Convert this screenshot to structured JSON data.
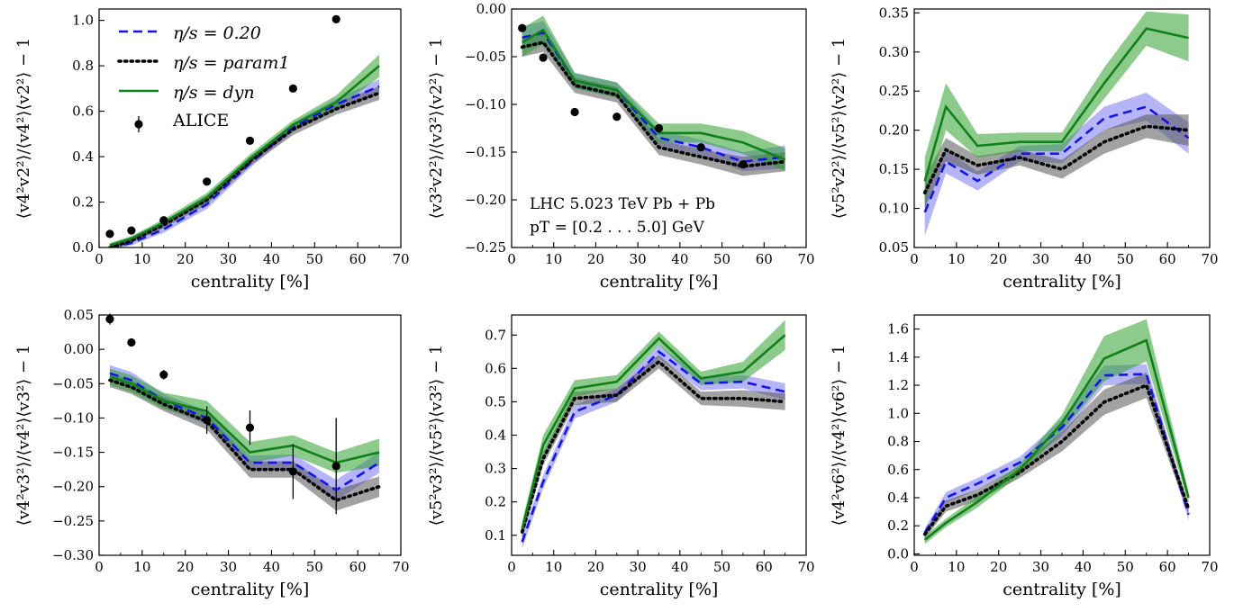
{
  "colors": {
    "blue": "#1414e6",
    "black": "#000000",
    "green": "#12801a",
    "blue_band": "#5a5af0",
    "black_band": "#555555",
    "green_band": "#2ea02e"
  },
  "legend": [
    {
      "label": "η/s = 0.20",
      "series": "blue",
      "style": "dashed"
    },
    {
      "label": "η/s = param1",
      "series": "black",
      "style": "dotted"
    },
    {
      "label": "η/s = dyn",
      "series": "green",
      "style": "solid"
    },
    {
      "label": "ALICE",
      "series": "data",
      "style": "marker"
    }
  ],
  "annotation": {
    "line1": "LHC 5.023 TeV Pb + Pb",
    "line2": "pT = [0.2 . . . 5.0] GeV"
  },
  "chart_data": [
    {
      "type": "line",
      "ylabel": "⟨v4²v2²⟩/⟨v4²⟩⟨v2²⟩ − 1",
      "xlabel": "centrality [%]",
      "xlim": [
        0,
        70
      ],
      "ylim": [
        0,
        1.05
      ],
      "xticks": [
        0,
        10,
        20,
        30,
        40,
        50,
        60,
        70
      ],
      "yticks": [
        0.0,
        0.2,
        0.4,
        0.6,
        0.8,
        1.0
      ],
      "ytick_labels": [
        "0.0",
        "0.2",
        "0.4",
        "0.6",
        "0.8",
        "1.0"
      ],
      "x": [
        2.5,
        7.5,
        15,
        25,
        35,
        45,
        55,
        65
      ],
      "series": [
        {
          "name": "η/s = 0.20",
          "values": [
            0.0,
            0.02,
            0.08,
            0.19,
            0.37,
            0.53,
            0.63,
            0.71
          ],
          "band": [
            0.01,
            0.01,
            0.015,
            0.02,
            0.02,
            0.02,
            0.025,
            0.03
          ]
        },
        {
          "name": "η/s = param1",
          "values": [
            0.0,
            0.03,
            0.1,
            0.21,
            0.38,
            0.52,
            0.61,
            0.68
          ],
          "band": [
            0.01,
            0.01,
            0.015,
            0.02,
            0.02,
            0.025,
            0.025,
            0.03
          ]
        },
        {
          "name": "η/s = dyn",
          "values": [
            0.01,
            0.04,
            0.11,
            0.22,
            0.39,
            0.54,
            0.64,
            0.8
          ],
          "band": [
            0.01,
            0.01,
            0.015,
            0.02,
            0.02,
            0.02,
            0.03,
            0.05
          ]
        }
      ],
      "data_points": {
        "name": "ALICE",
        "x": [
          2.5,
          7.5,
          15,
          25,
          35,
          45,
          55
        ],
        "y": [
          0.06,
          0.075,
          0.12,
          0.29,
          0.47,
          0.7,
          1.005
        ],
        "err": [
          0,
          0,
          0,
          0,
          0,
          0,
          0
        ]
      }
    },
    {
      "type": "line",
      "ylabel": "⟨v3²v2²⟩/⟨v3²⟩⟨v2²⟩ − 1",
      "xlabel": "centrality [%]",
      "xlim": [
        0,
        70
      ],
      "ylim": [
        -0.25,
        0.0
      ],
      "xticks": [
        0,
        10,
        20,
        30,
        40,
        50,
        60,
        70
      ],
      "yticks": [
        -0.25,
        -0.2,
        -0.15,
        -0.1,
        -0.05,
        0.0
      ],
      "ytick_labels": [
        "−0.25",
        "−0.20",
        "−0.15",
        "−0.10",
        "−0.05",
        "0.00"
      ],
      "x": [
        2.5,
        7.5,
        15,
        25,
        35,
        45,
        55,
        65
      ],
      "series": [
        {
          "name": "η/s = 0.20",
          "values": [
            -0.03,
            -0.025,
            -0.075,
            -0.085,
            -0.135,
            -0.145,
            -0.16,
            -0.155
          ],
          "band": [
            0.012,
            0.012,
            0.008,
            0.008,
            0.008,
            0.008,
            0.01,
            0.012
          ]
        },
        {
          "name": "η/s = param1",
          "values": [
            -0.04,
            -0.035,
            -0.08,
            -0.09,
            -0.145,
            -0.155,
            -0.165,
            -0.16
          ],
          "band": [
            0.01,
            0.01,
            0.008,
            0.008,
            0.008,
            0.008,
            0.01,
            0.01
          ]
        },
        {
          "name": "η/s = dyn",
          "values": [
            -0.035,
            -0.022,
            -0.075,
            -0.085,
            -0.13,
            -0.13,
            -0.14,
            -0.158
          ],
          "band": [
            0.015,
            0.015,
            0.008,
            0.008,
            0.01,
            0.01,
            0.012,
            0.012
          ]
        }
      ],
      "data_points": {
        "name": "ALICE",
        "x": [
          2.5,
          7.5,
          15,
          25,
          35,
          45,
          55
        ],
        "y": [
          -0.02,
          -0.051,
          -0.108,
          -0.113,
          -0.125,
          -0.145,
          -0.163
        ],
        "err": [
          0,
          0,
          0,
          0,
          0,
          0,
          0
        ]
      }
    },
    {
      "type": "line",
      "ylabel": "⟨v5²v2²⟩/⟨v5²⟩⟨v2²⟩ − 1",
      "xlabel": "centrality [%]",
      "xlim": [
        0,
        70
      ],
      "ylim": [
        0.05,
        0.355
      ],
      "xticks": [
        0,
        10,
        20,
        30,
        40,
        50,
        60,
        70
      ],
      "yticks": [
        0.05,
        0.1,
        0.15,
        0.2,
        0.25,
        0.3,
        0.35
      ],
      "ytick_labels": [
        "0.05",
        "0.10",
        "0.15",
        "0.20",
        "0.25",
        "0.30",
        "0.35"
      ],
      "x": [
        2.5,
        7.5,
        15,
        25,
        35,
        45,
        55,
        65
      ],
      "series": [
        {
          "name": "η/s = 0.20",
          "values": [
            0.095,
            0.16,
            0.135,
            0.17,
            0.17,
            0.215,
            0.23,
            0.19
          ],
          "band": [
            0.03,
            0.015,
            0.012,
            0.01,
            0.012,
            0.015,
            0.018,
            0.02
          ]
        },
        {
          "name": "η/s = param1",
          "values": [
            0.12,
            0.175,
            0.155,
            0.165,
            0.15,
            0.185,
            0.205,
            0.2
          ],
          "band": [
            0.02,
            0.015,
            0.012,
            0.01,
            0.012,
            0.015,
            0.015,
            0.02
          ]
        },
        {
          "name": "η/s = dyn",
          "values": [
            0.135,
            0.23,
            0.18,
            0.185,
            0.185,
            0.26,
            0.33,
            0.318
          ],
          "band": [
            0.03,
            0.03,
            0.015,
            0.012,
            0.012,
            0.02,
            0.022,
            0.03
          ]
        }
      ]
    },
    {
      "type": "line",
      "ylabel": "⟨v4²v3²⟩/⟨v4²⟩⟨v3²⟩ − 1",
      "xlabel": "centrality [%]",
      "xlim": [
        0,
        70
      ],
      "ylim": [
        -0.3,
        0.05
      ],
      "xticks": [
        0,
        10,
        20,
        30,
        40,
        50,
        60,
        70
      ],
      "yticks": [
        -0.3,
        -0.25,
        -0.2,
        -0.15,
        -0.1,
        -0.05,
        0.0,
        0.05
      ],
      "ytick_labels": [
        "−0.30",
        "−0.25",
        "−0.20",
        "−0.15",
        "−0.10",
        "−0.05",
        "0.00",
        "0.05"
      ],
      "x": [
        2.5,
        7.5,
        15,
        25,
        35,
        45,
        55,
        65
      ],
      "series": [
        {
          "name": "η/s = 0.20",
          "values": [
            -0.035,
            -0.045,
            -0.075,
            -0.1,
            -0.165,
            -0.165,
            -0.205,
            -0.165
          ],
          "band": [
            0.012,
            0.012,
            0.01,
            0.01,
            0.01,
            0.012,
            0.015,
            0.015
          ]
        },
        {
          "name": "η/s = param1",
          "values": [
            -0.045,
            -0.055,
            -0.08,
            -0.105,
            -0.175,
            -0.175,
            -0.22,
            -0.2
          ],
          "band": [
            0.01,
            0.01,
            0.01,
            0.012,
            0.012,
            0.012,
            0.015,
            0.015
          ]
        },
        {
          "name": "η/s = dyn",
          "values": [
            -0.04,
            -0.05,
            -0.075,
            -0.09,
            -0.15,
            -0.14,
            -0.165,
            -0.15
          ],
          "band": [
            0.012,
            0.012,
            0.012,
            0.015,
            0.015,
            0.015,
            0.015,
            0.02
          ]
        }
      ],
      "data_points": {
        "name": "ALICE",
        "x": [
          2.5,
          7.5,
          15,
          25,
          35,
          45,
          55
        ],
        "y": [
          0.044,
          0.01,
          -0.037,
          -0.103,
          -0.114,
          -0.178,
          -0.17
        ],
        "err": [
          0.008,
          0.006,
          0.007,
          0.02,
          0.025,
          0.04,
          0.07
        ]
      }
    },
    {
      "type": "line",
      "ylabel": "⟨v5²v3²⟩/⟨v5²⟩⟨v3²⟩ − 1",
      "xlabel": "centrality [%]",
      "xlim": [
        0,
        70
      ],
      "ylim": [
        0.04,
        0.76
      ],
      "xticks": [
        0,
        10,
        20,
        30,
        40,
        50,
        60,
        70
      ],
      "yticks": [
        0.1,
        0.2,
        0.3,
        0.4,
        0.5,
        0.6,
        0.7
      ],
      "ytick_labels": [
        "0.1",
        "0.2",
        "0.3",
        "0.4",
        "0.5",
        "0.6",
        "0.7"
      ],
      "x": [
        2.5,
        7.5,
        15,
        25,
        35,
        45,
        55,
        65
      ],
      "series": [
        {
          "name": "η/s = 0.20",
          "values": [
            0.08,
            0.26,
            0.47,
            0.52,
            0.65,
            0.555,
            0.56,
            0.53
          ],
          "band": [
            0.02,
            0.02,
            0.02,
            0.02,
            0.02,
            0.02,
            0.02,
            0.025
          ]
        },
        {
          "name": "η/s = param1",
          "values": [
            0.11,
            0.33,
            0.51,
            0.52,
            0.62,
            0.51,
            0.51,
            0.5
          ],
          "band": [
            0.02,
            0.02,
            0.02,
            0.02,
            0.02,
            0.02,
            0.025,
            0.025
          ]
        },
        {
          "name": "η/s = dyn",
          "values": [
            0.12,
            0.37,
            0.54,
            0.56,
            0.69,
            0.57,
            0.59,
            0.7
          ],
          "band": [
            0.02,
            0.03,
            0.025,
            0.02,
            0.02,
            0.02,
            0.03,
            0.045
          ]
        }
      ]
    },
    {
      "type": "line",
      "ylabel": "⟨v4²v6²⟩/⟨v4²⟩⟨v6²⟩ − 1",
      "xlabel": "centrality [%]",
      "xlim": [
        0,
        70
      ],
      "ylim": [
        -0.01,
        1.7
      ],
      "xticks": [
        0,
        10,
        20,
        30,
        40,
        50,
        60,
        70
      ],
      "yticks": [
        0.0,
        0.2,
        0.4,
        0.6,
        0.8,
        1.0,
        1.2,
        1.4,
        1.6
      ],
      "ytick_labels": [
        "0.0",
        "0.2",
        "0.4",
        "0.6",
        "0.8",
        "1.0",
        "1.2",
        "1.4",
        "1.6"
      ],
      "x": [
        2.5,
        7.5,
        15,
        25,
        35,
        45,
        55,
        65
      ],
      "series": [
        {
          "name": "η/s = 0.20",
          "values": [
            0.15,
            0.4,
            0.5,
            0.65,
            0.9,
            1.27,
            1.28,
            0.28
          ],
          "band": [
            0.03,
            0.04,
            0.04,
            0.04,
            0.06,
            0.07,
            0.07,
            0.04
          ]
        },
        {
          "name": "η/s = param1",
          "values": [
            0.14,
            0.34,
            0.42,
            0.58,
            0.8,
            1.08,
            1.2,
            0.32
          ],
          "band": [
            0.03,
            0.04,
            0.04,
            0.04,
            0.07,
            0.09,
            0.09,
            0.04
          ]
        },
        {
          "name": "η/s = dyn",
          "values": [
            0.1,
            0.22,
            0.37,
            0.6,
            0.93,
            1.39,
            1.52,
            0.4
          ],
          "band": [
            0.03,
            0.03,
            0.04,
            0.04,
            0.06,
            0.16,
            0.15,
            0.04
          ]
        }
      ]
    }
  ]
}
